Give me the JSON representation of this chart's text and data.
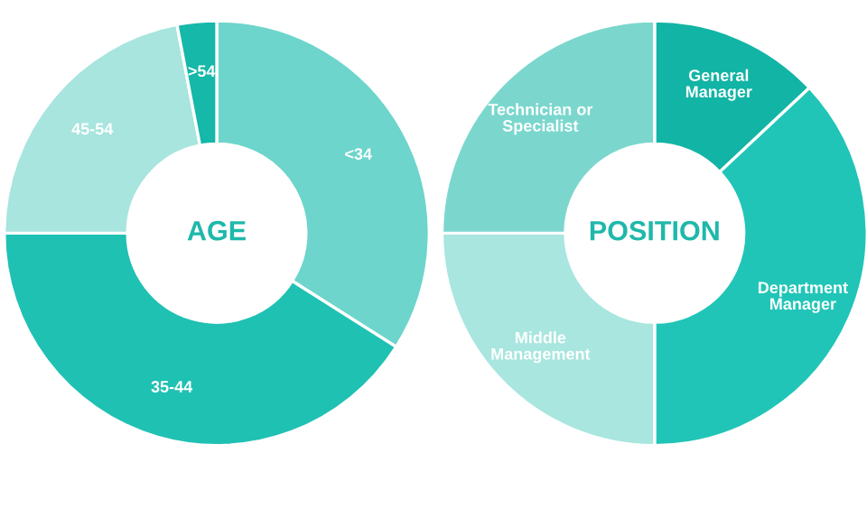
{
  "chart_data": [
    {
      "type": "donut",
      "title": "AGE",
      "categories": [
        "<34",
        "35-44",
        "45-54",
        ">54"
      ],
      "values": [
        34,
        41,
        22,
        3
      ],
      "colors": [
        "#6dd5cb",
        "#1fc1b3",
        "#a7e5de",
        "#15b8a9"
      ]
    },
    {
      "type": "donut",
      "title": "POSITION",
      "categories": [
        "General\nManager",
        "Department\nManager",
        "Middle\nManagement",
        "Technician or\nSpecialist"
      ],
      "values": [
        13,
        37,
        25,
        25
      ],
      "colors": [
        "#12b4a5",
        "#21c5b7",
        "#a8e6df",
        "#7bd7ce"
      ]
    }
  ]
}
